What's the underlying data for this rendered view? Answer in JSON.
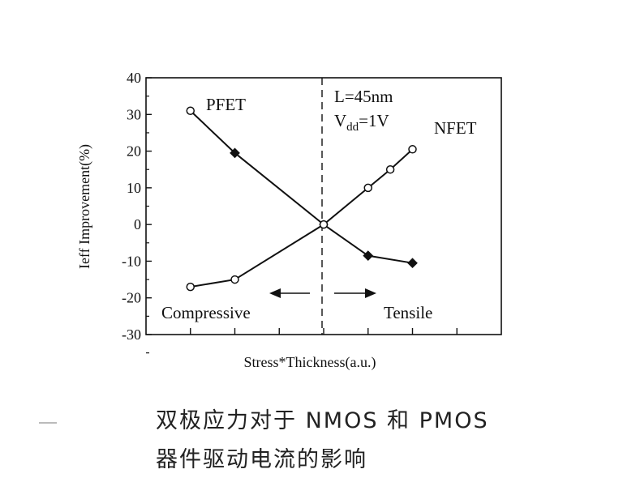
{
  "chart_data": {
    "type": "line",
    "xlabel": "Stress*Thickness(a.u.)",
    "ylabel": "Ieff Improvement(%)",
    "ylim": [
      -30,
      40
    ],
    "xlim": [
      -4,
      4
    ],
    "yticks": [
      "40",
      "30",
      "20",
      "10",
      "0",
      "-10",
      "-20",
      "-30"
    ],
    "grid": false,
    "series": [
      {
        "name": "PFET",
        "marker": "filled-diamond-open-ends",
        "x": [
          -3,
          -2,
          0,
          1,
          2
        ],
        "y": [
          31,
          19.5,
          0,
          -8.5,
          -10.5
        ]
      },
      {
        "name": "NFET",
        "marker": "open-circle",
        "x": [
          -3,
          -2,
          0,
          1,
          1.5,
          2
        ],
        "y": [
          -17,
          -15,
          0,
          10,
          15,
          20.5
        ]
      }
    ],
    "annotations": {
      "length": "L=45nm",
      "vdd_prefix": "V",
      "vdd_subscript": "dd",
      "vdd_suffix": "=1V",
      "compressive": "Compressive",
      "tensile": "Tensile"
    }
  },
  "caption": {
    "line1": "双极应力对于 NMOS 和 PMOS",
    "line2": "器件驱动电流的影响"
  }
}
